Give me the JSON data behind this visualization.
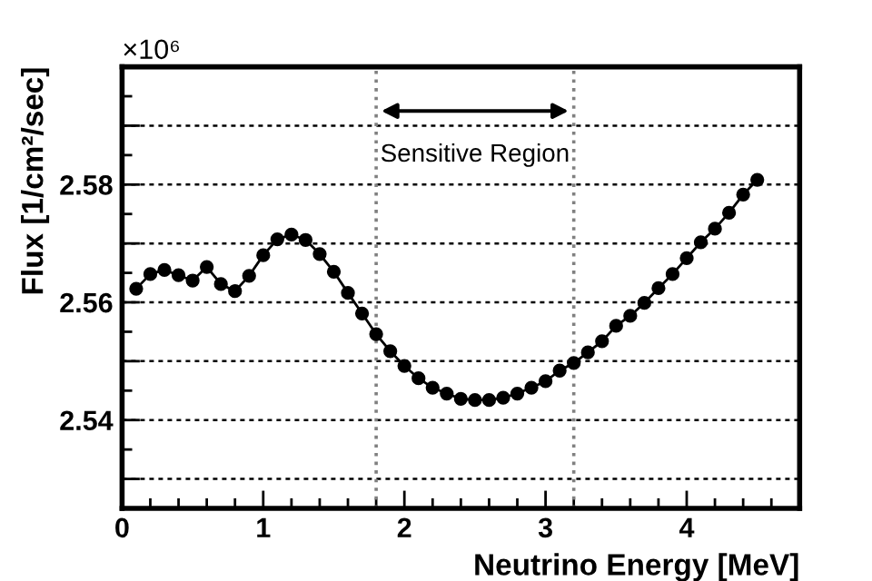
{
  "chart_data": {
    "type": "line",
    "xlabel": "Neutrino Energy [MeV]",
    "ylabel": "Flux [1/cm²/sec]",
    "x": [
      0.1,
      0.2,
      0.3,
      0.4,
      0.5,
      0.6,
      0.7,
      0.8,
      0.9,
      1.0,
      1.1,
      1.2,
      1.3,
      1.4,
      1.5,
      1.6,
      1.7,
      1.8,
      1.9,
      2.0,
      2.1,
      2.2,
      2.3,
      2.4,
      2.5,
      2.6,
      2.7,
      2.8,
      2.9,
      3.0,
      3.1,
      3.2,
      3.3,
      3.4,
      3.5,
      3.6,
      3.7,
      3.8,
      3.9,
      4.0,
      4.1,
      4.2,
      4.3,
      4.4,
      4.5
    ],
    "series": [
      {
        "color": "#000000",
        "values": [
          2.5623,
          2.5648,
          2.5655,
          2.5646,
          2.5637,
          2.566,
          2.5631,
          2.5619,
          2.5645,
          2.568,
          2.5707,
          2.5715,
          2.5706,
          2.5682,
          2.5652,
          2.5616,
          2.5581,
          2.5546,
          2.5517,
          2.5492,
          2.5471,
          2.5455,
          2.5445,
          2.5436,
          2.5434,
          2.5434,
          2.5438,
          2.5445,
          2.5455,
          2.5466,
          2.5484,
          2.5497,
          2.5515,
          2.5534,
          2.556,
          2.5577,
          2.5599,
          2.5624,
          2.5648,
          2.5675,
          2.5702,
          2.5725,
          2.5752,
          2.5783,
          2.5808
        ]
      }
    ],
    "marker": "circle",
    "line_style": "solid",
    "grid": "y",
    "xlim": [
      0,
      4.8
    ],
    "xticks": [
      0,
      1,
      2,
      3,
      4
    ],
    "ylim": [
      2.525,
      2.6
    ],
    "yticks": [
      {
        "value": 2.53,
        "label": null
      },
      2.54,
      {
        "value": 2.55,
        "label": null
      },
      2.56,
      {
        "value": 2.57,
        "label": null
      },
      2.58,
      {
        "value": 2.59,
        "label": null
      }
    ],
    "ref_lines": [
      {
        "axis": "x",
        "value": 1.8,
        "color": "#808080",
        "line_style": "dotted"
      },
      {
        "axis": "x",
        "value": 3.2,
        "color": "#808080",
        "line_style": "dotted"
      }
    ],
    "annotations": [
      "×10⁶",
      "Sensitive Region"
    ]
  }
}
